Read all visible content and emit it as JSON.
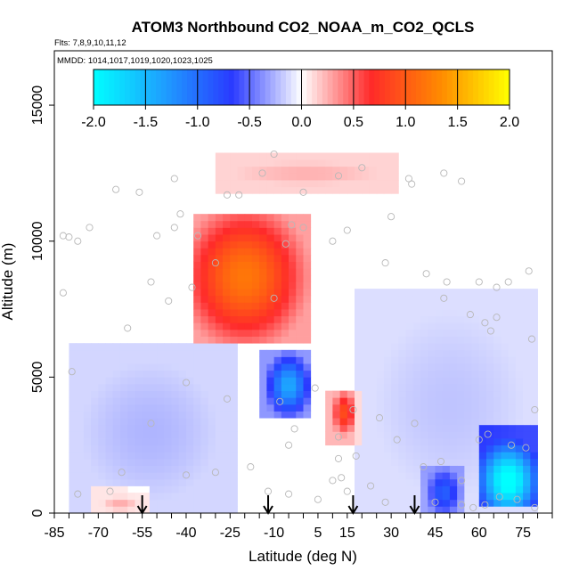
{
  "chart_data": {
    "type": "heatmap",
    "title": "ATOM3 Northbound CO2_NOAA_m_CO2_QCLS",
    "flights_text": "Flts: 7,8,9,10,11,12",
    "dates_text": "MMDD: 1014,1017,1019,1020,1023,1025",
    "xlabel": "Latitude (deg N)",
    "ylabel": "Altitude (m)",
    "xlim": [
      -85,
      85
    ],
    "ylim": [
      0,
      17000
    ],
    "x_ticks": [
      "-85",
      "-70",
      "-55",
      "-40",
      "-25",
      "-10",
      "5",
      "15",
      "30",
      "45",
      "60",
      "75"
    ],
    "x_tick_values": [
      -85,
      -70,
      -55,
      -40,
      -25,
      -10,
      5,
      15,
      30,
      45,
      60,
      75
    ],
    "y_ticks": [
      "0",
      "5000",
      "10000",
      "15000"
    ],
    "y_tick_values": [
      0,
      5000,
      10000,
      15000
    ],
    "colorbar": {
      "range": [
        -2.0,
        2.0
      ],
      "tick_labels": [
        "-2.0",
        "-1.5",
        "-1.0",
        "-0.5",
        "0.0",
        "0.5",
        "1.0",
        "1.5",
        "2.0"
      ],
      "tick_values": [
        -2.0,
        -1.5,
        -1.0,
        -0.5,
        0.0,
        0.5,
        1.0,
        1.5,
        2.0
      ],
      "colors": [
        "#00ffff",
        "#1ea0ff",
        "#2a3aff",
        "#ffffff",
        "#ff2a2a",
        "#ff8a00",
        "#ffff00"
      ]
    },
    "arrow_latitudes": [
      -55,
      -12,
      17,
      38
    ],
    "regions": [
      {
        "name": "upper-trop-positive",
        "lat": [
          -35,
          0
        ],
        "alt": [
          6500,
          10800
        ],
        "peak": 1.2,
        "peak_lat": -20,
        "peak_alt": 8700
      },
      {
        "name": "upper-weak-positive",
        "lat": [
          -28,
          30
        ],
        "alt": [
          12000,
          13000
        ],
        "peak": 0.25
      },
      {
        "name": "mid-negative-core",
        "lat": [
          -13,
          0
        ],
        "alt": [
          3700,
          5700
        ],
        "peak": -1.4,
        "peak_lat": -5,
        "peak_alt": 4700
      },
      {
        "name": "mid-positive-spot",
        "lat": [
          10,
          17
        ],
        "alt": [
          2900,
          4300
        ],
        "peak": 0.9,
        "peak_lat": 14,
        "peak_alt": 3700
      },
      {
        "name": "southern-weak-negative",
        "lat": [
          -80,
          -25
        ],
        "alt": [
          0,
          6000
        ],
        "peak": -0.25
      },
      {
        "name": "northern-weak-negative",
        "lat": [
          20,
          80
        ],
        "alt": [
          0,
          8000
        ],
        "peak": -0.2
      },
      {
        "name": "surface-positive-south",
        "lat": [
          -70,
          -55
        ],
        "alt": [
          0,
          700
        ],
        "peak": 0.4
      },
      {
        "name": "surface-negative-45N",
        "lat": [
          43,
          53
        ],
        "alt": [
          0,
          1500
        ],
        "peak": -0.8
      },
      {
        "name": "boundary-layer-negative-north",
        "lat": [
          62,
          80
        ],
        "alt": [
          500,
          3000
        ],
        "peak": -2.0,
        "peak_lat": 70,
        "peak_alt": 1200
      }
    ],
    "sample_points": [
      [
        -82,
        10200
      ],
      [
        -80,
        10150
      ],
      [
        -77,
        10000
      ],
      [
        -82,
        8100
      ],
      [
        -73,
        10500
      ],
      [
        -56,
        11800
      ],
      [
        -44,
        10500
      ],
      [
        -36,
        10200
      ],
      [
        -42,
        11000
      ],
      [
        -50,
        10200
      ],
      [
        -26,
        11700
      ],
      [
        -22,
        11700
      ],
      [
        -10,
        13200
      ],
      [
        -14,
        12500
      ],
      [
        -6,
        9900
      ],
      [
        0,
        10500
      ],
      [
        10,
        10000
      ],
      [
        15,
        10400
      ],
      [
        30,
        10900
      ],
      [
        36,
        12300
      ],
      [
        37,
        12100
      ],
      [
        48,
        12500
      ],
      [
        54,
        12200
      ],
      [
        42,
        8800
      ],
      [
        49,
        8500
      ],
      [
        60,
        8500
      ],
      [
        66,
        8300
      ],
      [
        70,
        8500
      ],
      [
        77,
        8900
      ],
      [
        57,
        7300
      ],
      [
        62,
        7000
      ],
      [
        64,
        6700
      ],
      [
        66,
        7200
      ],
      [
        78,
        6400
      ],
      [
        -79,
        5200
      ],
      [
        -60,
        6800
      ],
      [
        -46,
        7800
      ],
      [
        -40,
        4800
      ],
      [
        -26,
        4200
      ],
      [
        -8,
        4100
      ],
      [
        4,
        4600
      ],
      [
        17,
        3800
      ],
      [
        -5,
        2500
      ],
      [
        12,
        2800
      ],
      [
        -3,
        3100
      ],
      [
        12,
        2000
      ],
      [
        10,
        1200
      ],
      [
        13,
        1300
      ],
      [
        18,
        2100
      ],
      [
        23,
        1000
      ],
      [
        26,
        3500
      ],
      [
        32,
        2700
      ],
      [
        38,
        3300
      ],
      [
        41,
        1700
      ],
      [
        47,
        1900
      ],
      [
        54,
        1200
      ],
      [
        60,
        2700
      ],
      [
        63,
        2900
      ],
      [
        71,
        2500
      ],
      [
        76,
        2400
      ],
      [
        79,
        3800
      ],
      [
        -77,
        700
      ],
      [
        -66,
        800
      ],
      [
        -62,
        1500
      ],
      [
        -52,
        3300
      ],
      [
        -40,
        1400
      ],
      [
        -30,
        1500
      ],
      [
        -18,
        1700
      ],
      [
        -12,
        800
      ],
      [
        -5,
        700
      ],
      [
        5,
        500
      ],
      [
        15,
        800
      ],
      [
        28,
        400
      ],
      [
        45,
        400
      ],
      [
        54,
        300
      ],
      [
        58,
        200
      ],
      [
        62,
        300
      ],
      [
        67,
        600
      ],
      [
        73,
        500
      ],
      [
        79,
        200
      ],
      [
        -44,
        12300
      ],
      [
        -64,
        11900
      ],
      [
        0,
        11800
      ],
      [
        20,
        12700
      ],
      [
        12,
        12400
      ],
      [
        -4,
        10600
      ],
      [
        -52,
        8500
      ],
      [
        -38,
        8300
      ],
      [
        48,
        7900
      ],
      [
        -30,
        9200
      ],
      [
        -10,
        7900
      ],
      [
        28,
        9200
      ]
    ]
  }
}
